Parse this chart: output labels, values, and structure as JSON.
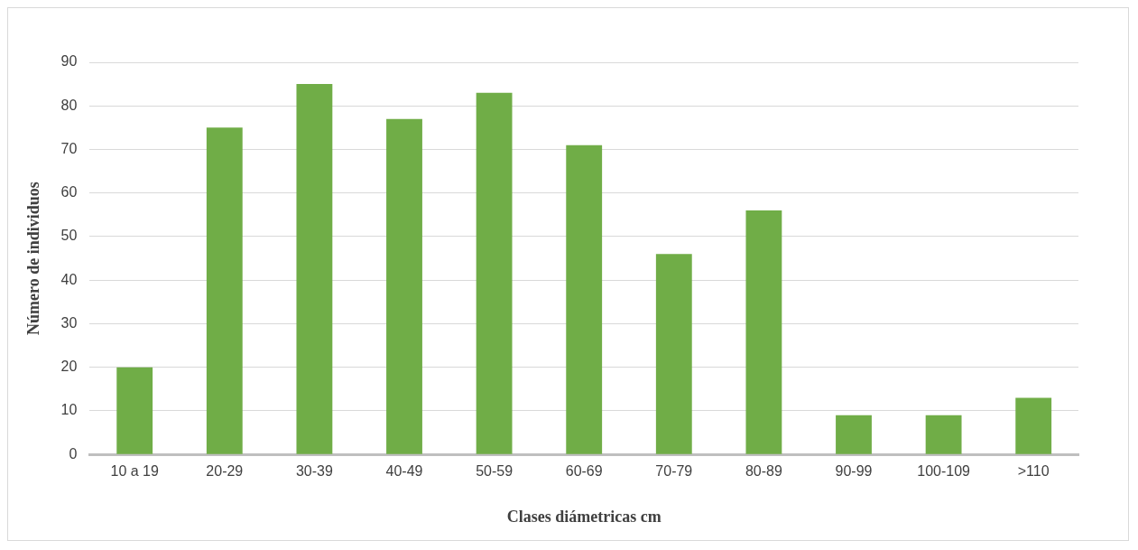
{
  "chart_data": {
    "type": "bar",
    "xlabel": "Clases diámetricas cm",
    "ylabel": "Número de individuos",
    "categories": [
      "10 a 19",
      "20-29",
      "30-39",
      "40-49",
      "50-59",
      "60-69",
      "70-79",
      "80-89",
      "90-99",
      "100-109",
      ">110"
    ],
    "values": [
      20,
      75,
      85,
      77,
      83,
      71,
      46,
      56,
      9,
      9,
      13
    ],
    "color": "#70ad47",
    "ylim": [
      0,
      90
    ],
    "yticks": [
      0,
      10,
      20,
      30,
      40,
      50,
      60,
      70,
      80,
      90
    ],
    "grid": "y",
    "legend": false
  }
}
